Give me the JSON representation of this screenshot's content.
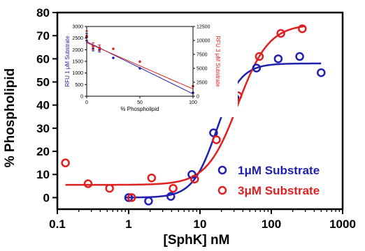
{
  "colors": {
    "blue": "#1f1fb0",
    "red": "#e01f1f",
    "axis": "#000000"
  },
  "chart_data": {
    "type": "scatter",
    "xlabel": "[SphK] nM",
    "ylabel": "% Phospholipid",
    "xscale": "log",
    "xlim": [
      0.1,
      1000
    ],
    "ylim": [
      -5,
      80
    ],
    "x_ticks": [
      0.1,
      1,
      10,
      100,
      1000
    ],
    "x_tick_labels": [
      "0.1",
      "1",
      "10",
      "100",
      "1000"
    ],
    "y_ticks": [
      0,
      10,
      20,
      30,
      40,
      50,
      60,
      70,
      80
    ],
    "y_tick_labels": [
      "0",
      "10",
      "20",
      "30",
      "40",
      "50",
      "60",
      "70",
      "80"
    ],
    "legend_position": "bottom-right",
    "series": [
      {
        "name": "1μM Substrate",
        "color": "#1f1fb0",
        "marker": "open-circle",
        "points": [
          [
            1.0,
            0
          ],
          [
            1.9,
            -1.5
          ],
          [
            3.9,
            0.5
          ],
          [
            7.7,
            10
          ],
          [
            15.5,
            28
          ],
          [
            31,
            43
          ],
          [
            62,
            56
          ],
          [
            125,
            60
          ],
          [
            250,
            61
          ],
          [
            500,
            54
          ]
        ],
        "fit": {
          "bottom": 0,
          "top": 58,
          "ec50": 17,
          "hill": 2.6
        }
      },
      {
        "name": "3μM Substrate",
        "color": "#e01f1f",
        "marker": "open-circle",
        "points": [
          [
            0.13,
            15
          ],
          [
            0.27,
            6
          ],
          [
            0.54,
            4
          ],
          [
            1.1,
            0
          ],
          [
            2.1,
            8.5
          ],
          [
            4.2,
            4
          ],
          [
            8.4,
            8
          ],
          [
            17,
            25
          ],
          [
            34,
            44
          ],
          [
            68,
            61
          ],
          [
            136,
            71
          ],
          [
            272,
            73
          ]
        ],
        "fit": {
          "bottom": 5.5,
          "top": 75,
          "ec50": 34,
          "hill": 2.0
        }
      }
    ],
    "inset": {
      "type": "scatter",
      "xlabel": "% Phospholipid",
      "ylabel_left": "RFU 1 μM Substrate",
      "ylabel_right": "RFU 3 μM Substrate",
      "xlim": [
        0,
        100
      ],
      "ylim_left": [
        0,
        3000
      ],
      "ylim_right": [
        0,
        12500
      ],
      "x_ticks": [
        0,
        50,
        100
      ],
      "x_tick_labels": [
        "0",
        "50",
        "100"
      ],
      "y_ticks_left": [
        0,
        500,
        1000,
        1500,
        2000,
        2500,
        3000
      ],
      "y_tick_labels_left": [
        "0",
        "500",
        "1000",
        "1500",
        "2000",
        "2500",
        "3000"
      ],
      "y_ticks_right": [
        0,
        2500,
        5000,
        7500,
        10000,
        12500
      ],
      "y_tick_labels_right": [
        "0",
        "2500",
        "5000",
        "7500",
        "10000",
        "12500"
      ],
      "series": [
        {
          "axis": "left",
          "color": "#1f1fb0",
          "points": [
            [
              0,
              2550
            ],
            [
              6,
              2050
            ],
            [
              12,
              2000
            ],
            [
              25,
              1650
            ],
            [
              50,
              1200
            ],
            [
              100,
              150
            ]
          ],
          "errors": [
            150,
            100,
            100,
            0,
            0,
            0
          ],
          "fit": [
            [
              0,
              2350
            ],
            [
              100,
              100
            ]
          ]
        },
        {
          "axis": "right",
          "color": "#e01f1f",
          "points": [
            [
              0,
              10800
            ],
            [
              6,
              9000
            ],
            [
              12,
              8700
            ],
            [
              25,
              8500
            ],
            [
              50,
              6200
            ],
            [
              100,
              1800
            ]
          ],
          "errors": [
            900,
            600,
            500,
            0,
            0,
            0
          ],
          "fit": [
            [
              0,
              9600
            ],
            [
              100,
              1300
            ]
          ]
        }
      ]
    }
  }
}
